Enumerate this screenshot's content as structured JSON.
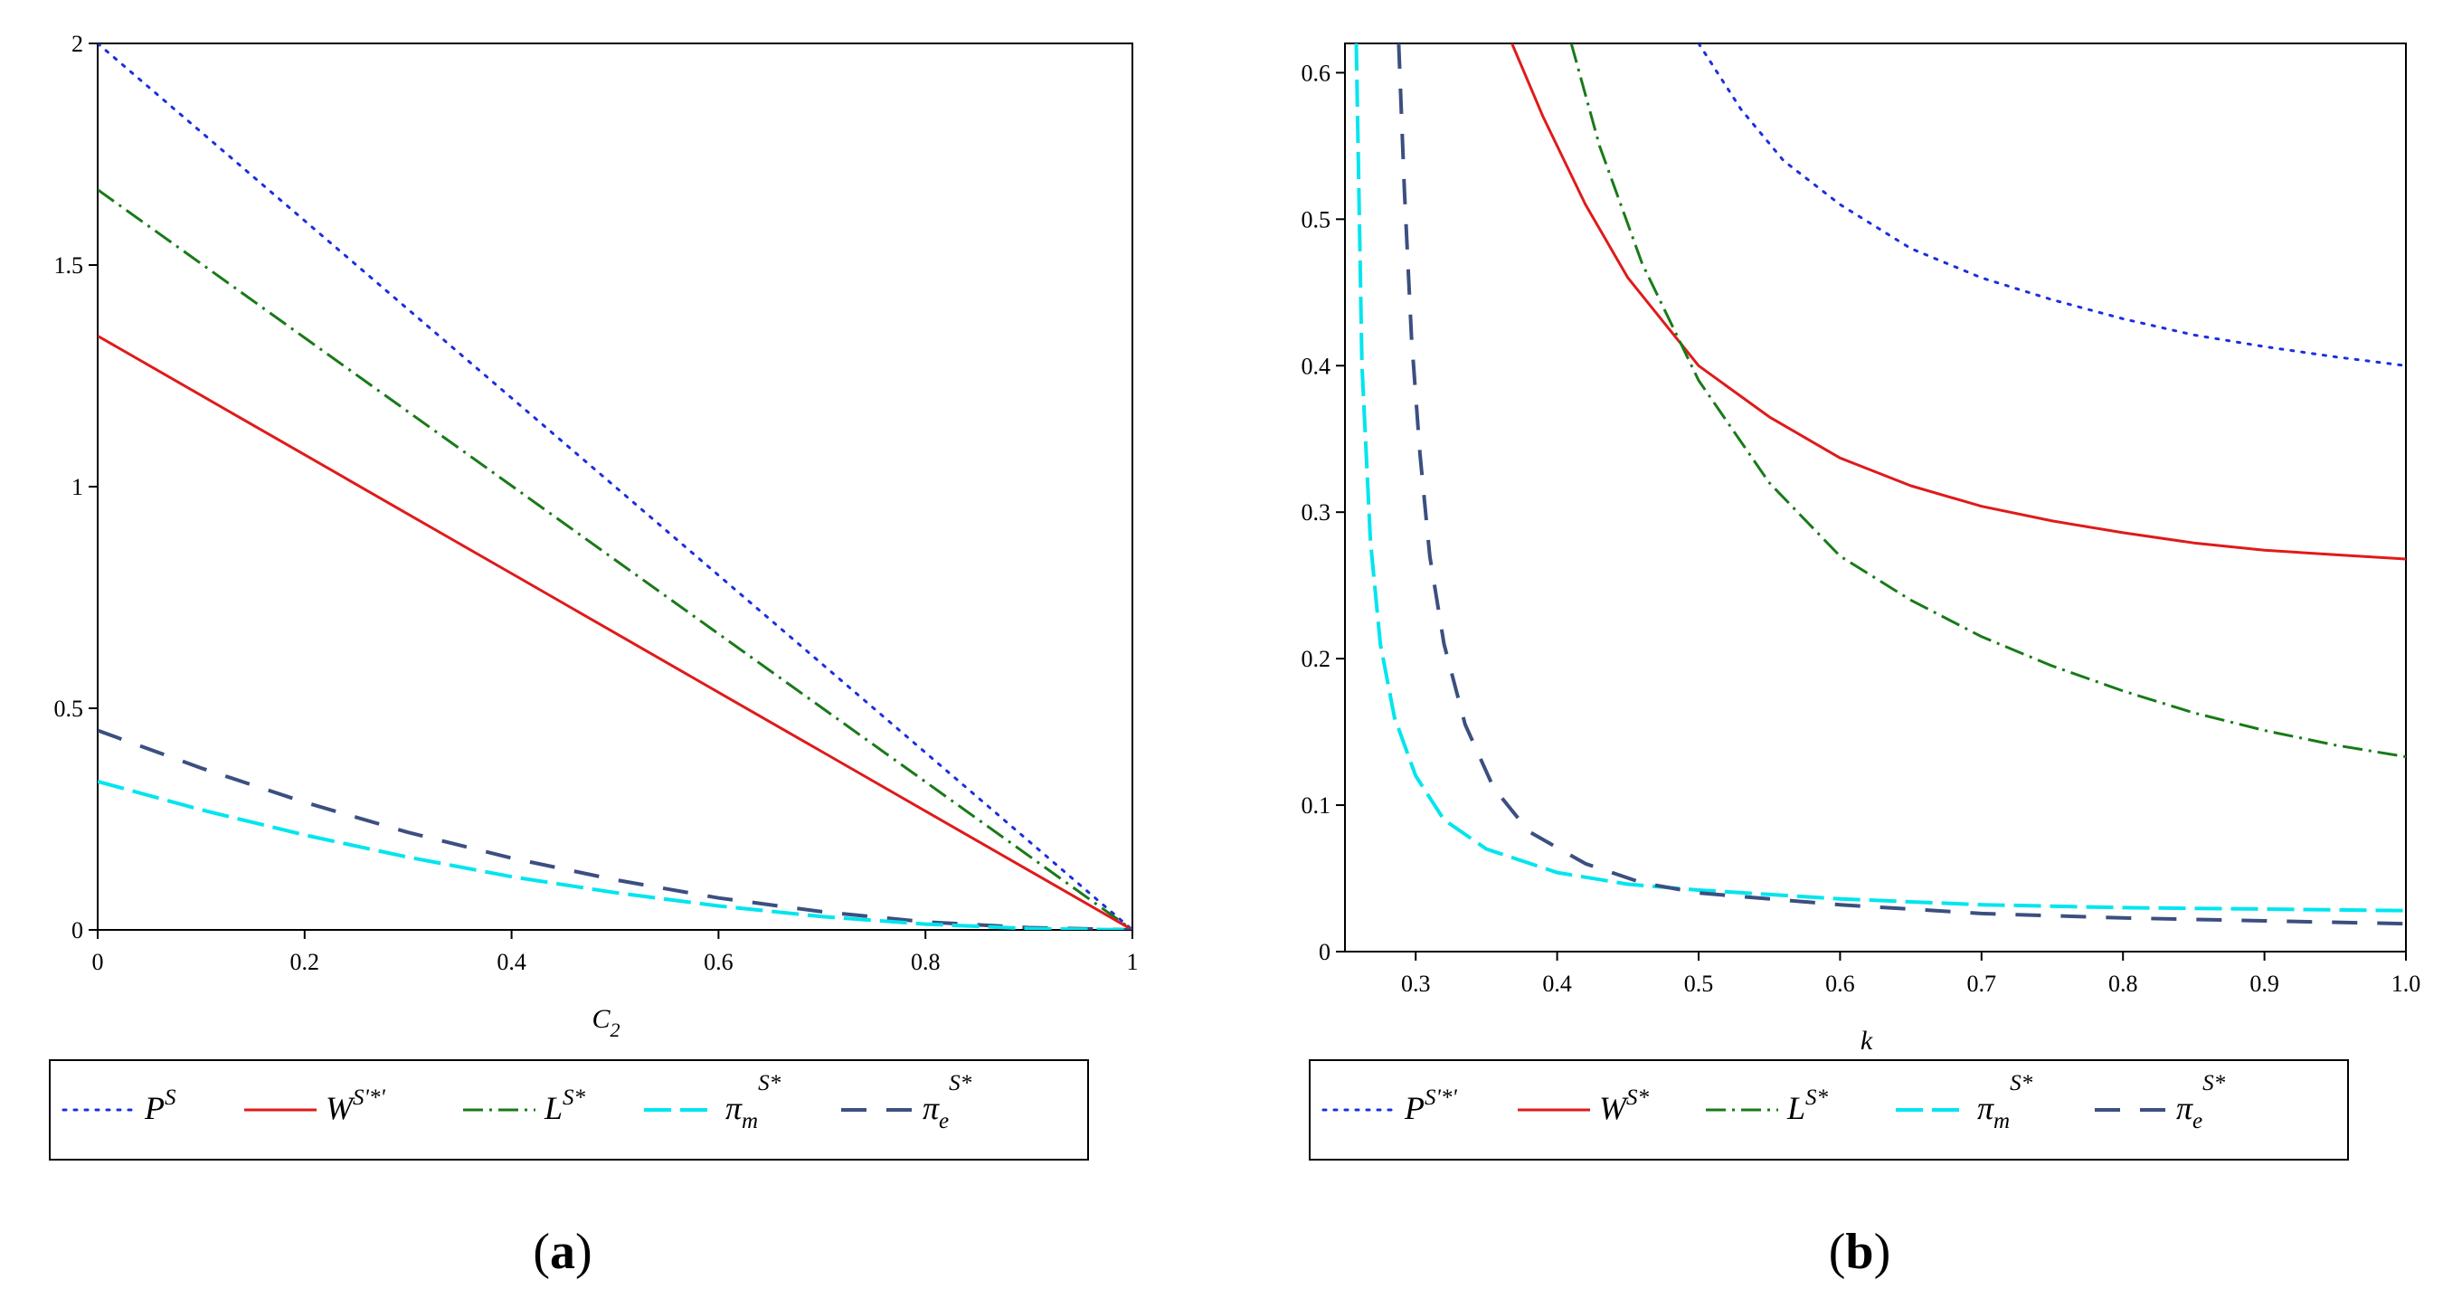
{
  "colors": {
    "P": "#1a2fe0",
    "W": "#e01a1a",
    "L": "#187a18",
    "pi_m": "#00e5ee",
    "pi_e": "#3b4f80"
  },
  "chart_data": [
    {
      "id": "a",
      "type": "line",
      "caption": {
        "open": "(",
        "letter": "a",
        "close": ")"
      },
      "xlabel": "C",
      "xlabel_sub": "2",
      "ylabel": "",
      "xlim": [
        0,
        1
      ],
      "ylim": [
        0,
        2
      ],
      "xticks": [
        "0",
        "0.2",
        "0.4",
        "0.6",
        "0.8",
        "1"
      ],
      "yticks": [
        "0",
        "0.5",
        "1",
        "1.5",
        "2"
      ],
      "x": [
        0,
        0.1,
        0.2,
        0.3,
        0.4,
        0.5,
        0.6,
        0.7,
        0.8,
        0.9,
        1.0
      ],
      "series": [
        {
          "key": "P",
          "values": [
            2.0,
            1.8,
            1.6,
            1.4,
            1.2,
            1.0,
            0.8,
            0.6,
            0.4,
            0.2,
            0.0
          ]
        },
        {
          "key": "L",
          "values": [
            1.67,
            1.503,
            1.336,
            1.169,
            1.002,
            0.835,
            0.668,
            0.501,
            0.334,
            0.167,
            0.0
          ]
        },
        {
          "key": "W",
          "values": [
            1.34,
            1.206,
            1.072,
            0.938,
            0.804,
            0.67,
            0.536,
            0.402,
            0.268,
            0.134,
            0.0
          ]
        },
        {
          "key": "pi_e",
          "values": [
            0.45,
            0.365,
            0.288,
            0.22,
            0.162,
            0.113,
            0.072,
            0.041,
            0.018,
            0.005,
            0.0
          ]
        },
        {
          "key": "pi_m",
          "values": [
            0.335,
            0.271,
            0.214,
            0.164,
            0.12,
            0.084,
            0.054,
            0.03,
            0.013,
            0.003,
            0.0
          ]
        }
      ],
      "legend": [
        {
          "key": "P",
          "sym": "P",
          "sup": "S",
          "sub": ""
        },
        {
          "key": "W",
          "sym": "W",
          "sup": "S'*'",
          "sub": ""
        },
        {
          "key": "L",
          "sym": "L",
          "sup": "S*",
          "sub": ""
        },
        {
          "key": "pi_m",
          "sym": "π",
          "sup": "S*",
          "sub": "m"
        },
        {
          "key": "pi_e",
          "sym": "π",
          "sup": "S*",
          "sub": "e"
        }
      ]
    },
    {
      "id": "b",
      "type": "line",
      "caption": {
        "open": "(",
        "letter": "b",
        "close": ")"
      },
      "xlabel": "k",
      "xlabel_sub": "",
      "ylabel": "",
      "xlim": [
        0.25,
        1.0
      ],
      "ylim": [
        0,
        0.62
      ],
      "xticks": [
        "0.3",
        "0.4",
        "0.5",
        "0.6",
        "0.7",
        "0.8",
        "0.9",
        "1.0"
      ],
      "yticks": [
        "0",
        "0.1",
        "0.2",
        "0.3",
        "0.4",
        "0.5",
        "0.6"
      ],
      "series": [
        {
          "key": "P",
          "x": [
            0.5,
            0.53,
            0.56,
            0.6,
            0.65,
            0.7,
            0.75,
            0.8,
            0.85,
            0.9,
            0.95,
            1.0
          ],
          "values": [
            0.62,
            0.575,
            0.54,
            0.51,
            0.48,
            0.46,
            0.445,
            0.432,
            0.421,
            0.413,
            0.406,
            0.4
          ]
        },
        {
          "key": "W",
          "x": [
            0.368,
            0.39,
            0.42,
            0.45,
            0.5,
            0.55,
            0.6,
            0.65,
            0.7,
            0.75,
            0.8,
            0.85,
            0.9,
            0.95,
            1.0
          ],
          "values": [
            0.62,
            0.57,
            0.51,
            0.46,
            0.4,
            0.365,
            0.337,
            0.318,
            0.304,
            0.294,
            0.286,
            0.279,
            0.274,
            0.271,
            0.268
          ]
        },
        {
          "key": "L",
          "x": [
            0.41,
            0.43,
            0.46,
            0.5,
            0.55,
            0.6,
            0.65,
            0.7,
            0.75,
            0.8,
            0.85,
            0.9,
            0.95,
            1.0
          ],
          "values": [
            0.62,
            0.55,
            0.47,
            0.39,
            0.32,
            0.27,
            0.24,
            0.215,
            0.195,
            0.178,
            0.163,
            0.151,
            0.141,
            0.133
          ]
        },
        {
          "key": "pi_m",
          "x": [
            0.258,
            0.262,
            0.268,
            0.275,
            0.285,
            0.3,
            0.32,
            0.35,
            0.4,
            0.45,
            0.5,
            0.6,
            0.7,
            0.8,
            0.9,
            1.0
          ],
          "values": [
            0.62,
            0.4,
            0.28,
            0.21,
            0.16,
            0.12,
            0.09,
            0.07,
            0.054,
            0.046,
            0.042,
            0.036,
            0.032,
            0.03,
            0.029,
            0.028
          ]
        },
        {
          "key": "pi_e",
          "x": [
            0.288,
            0.292,
            0.297,
            0.303,
            0.31,
            0.32,
            0.335,
            0.355,
            0.38,
            0.42,
            0.46,
            0.5,
            0.6,
            0.7,
            0.8,
            0.9,
            1.0
          ],
          "values": [
            0.62,
            0.52,
            0.42,
            0.34,
            0.27,
            0.21,
            0.155,
            0.112,
            0.082,
            0.06,
            0.047,
            0.04,
            0.032,
            0.026,
            0.023,
            0.021,
            0.019
          ]
        }
      ],
      "legend": [
        {
          "key": "P",
          "sym": "P",
          "sup": "S'*'",
          "sub": ""
        },
        {
          "key": "W",
          "sym": "W",
          "sup": "S*",
          "sub": ""
        },
        {
          "key": "L",
          "sym": "L",
          "sup": "S*",
          "sub": ""
        },
        {
          "key": "pi_m",
          "sym": "π",
          "sup": "S*",
          "sub": "m"
        },
        {
          "key": "pi_e",
          "sym": "π",
          "sup": "S*",
          "sub": "e"
        }
      ]
    }
  ]
}
